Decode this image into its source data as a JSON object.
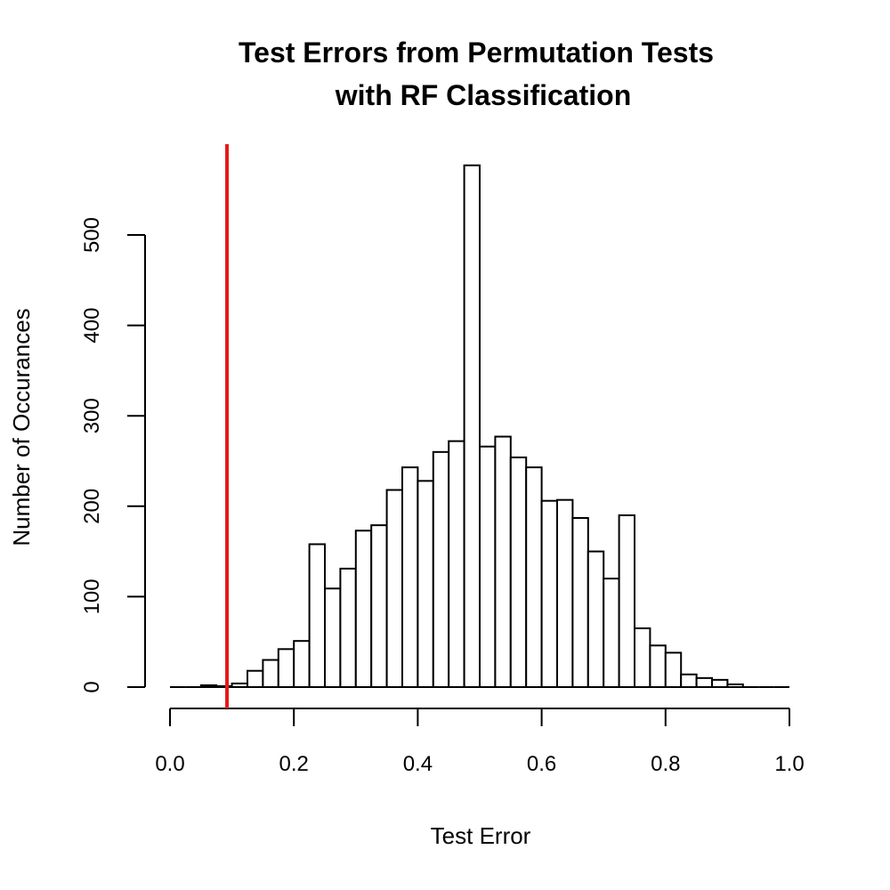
{
  "chart_data": {
    "type": "bar",
    "title_line1": "Test Errors from Permutation Tests",
    "title_line2": "with RF Classification",
    "xlabel": "Test Error",
    "ylabel": "Number of Occurances",
    "xlim": [
      0,
      1
    ],
    "ylim": [
      0,
      500
    ],
    "x_ticks": [
      "0.0",
      "0.2",
      "0.4",
      "0.6",
      "0.8",
      "1.0"
    ],
    "y_ticks": [
      "0",
      "100",
      "200",
      "300",
      "400",
      "500"
    ],
    "bin_width": 0.025,
    "bins_start": [
      0.0,
      0.025,
      0.05,
      0.075,
      0.1,
      0.125,
      0.15,
      0.175,
      0.2,
      0.225,
      0.25,
      0.275,
      0.3,
      0.325,
      0.35,
      0.375,
      0.4,
      0.425,
      0.45,
      0.475,
      0.5,
      0.525,
      0.55,
      0.575,
      0.6,
      0.625,
      0.65,
      0.675,
      0.7,
      0.725,
      0.75,
      0.775,
      0.8,
      0.825,
      0.85,
      0.875,
      0.9,
      0.925,
      0.95,
      0.975
    ],
    "values": [
      0,
      0,
      2,
      1,
      4,
      18,
      30,
      42,
      51,
      158,
      109,
      131,
      173,
      179,
      218,
      243,
      228,
      260,
      272,
      577,
      266,
      277,
      254,
      243,
      206,
      207,
      187,
      150,
      120,
      190,
      65,
      46,
      38,
      14,
      10,
      8,
      3,
      0,
      0,
      0
    ],
    "reference_line": {
      "x": 0.092,
      "color": "#e31a1c"
    },
    "grid": false,
    "legend": "none"
  }
}
